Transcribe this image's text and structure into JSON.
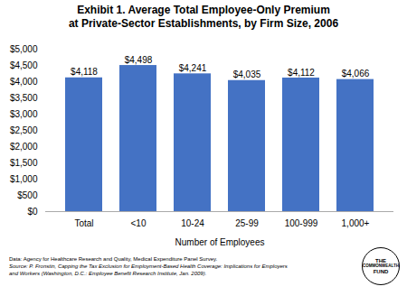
{
  "chart_data": {
    "type": "bar",
    "title": "Exhibit 1. Average Total Employee-Only Premium\nat Private-Sector Establishments, by Firm Size, 2006",
    "categories": [
      "Total",
      "<10",
      "10-24",
      "25-99",
      "100-999",
      "1,000+"
    ],
    "values": [
      4118,
      4498,
      4241,
      4035,
      4112,
      4066
    ],
    "value_labels": [
      "$4,118",
      "$4,498",
      "$4,241",
      "$4,035",
      "$4,112",
      "$4,066"
    ],
    "data_labels": true,
    "color": "#4472c4",
    "xlabel": "Number of Employees",
    "ylim": [
      0,
      5000
    ],
    "yticks": [
      {
        "value": 0,
        "label": "$0"
      },
      {
        "value": 500,
        "label": "$500"
      },
      {
        "value": 1000,
        "label": "$1,000"
      },
      {
        "value": 1500,
        "label": "$1,500"
      },
      {
        "value": 2000,
        "label": "$2,000"
      },
      {
        "value": 2500,
        "label": "$2,500"
      },
      {
        "value": 3000,
        "label": "$3,000"
      },
      {
        "value": 3500,
        "label": "$3,500"
      },
      {
        "value": 4000,
        "label": "$4,000"
      },
      {
        "value": 4500,
        "label": "$4,500"
      },
      {
        "value": 5000,
        "label": "$5,000"
      }
    ],
    "grid": false,
    "annotations": [
      "Data: Agency for Healthcare Research and Quality, Medical Expenditure Panel Survey.",
      "Source: P. Fronstin, Capping the Tax Exclusion for Employment-Based Health Coverage: Implications for Employers",
      "and Workers (Washington, D.C.: Employee Benefit Research Institute, Jan. 2009).",
      "THE",
      "COMMONWEALTH",
      "FUND"
    ]
  }
}
